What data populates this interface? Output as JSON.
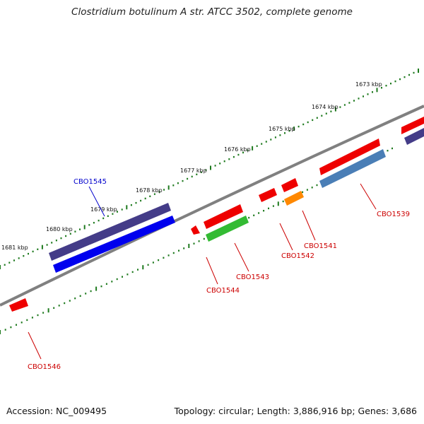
{
  "title": "Clostridium botulinum A str. ATCC 3502, complete genome",
  "footer": {
    "accession": "Accession: NC_009495",
    "topology": "Topology: circular; Length: 3,886,916 bp; Genes: 3,686"
  },
  "colors": {
    "backbone": "#808080",
    "tick": "#1e7a1e",
    "label_red": "#cc0000",
    "label_blue": "#0000cc",
    "red": "#ee0000",
    "blue": "#0000ee",
    "slate": "#443c88",
    "green": "#33bb33",
    "steel": "#4a7eb6",
    "orange": "#ff8800"
  },
  "kbp_labels": [
    "1673 kbp",
    "1674 kbp",
    "1675 kbp",
    "1676 kbp",
    "1677 kbp",
    "1678 kbp",
    "1679 kbp",
    "1680 kbp",
    "1681 kbp"
  ],
  "gene_labels": {
    "cbo1539": "CBO1539",
    "cbo1541": "CBO1541",
    "cbo1542": "CBO1542",
    "cbo1543": "CBO1543",
    "cbo1544": "CBO1544",
    "cbo1545": "CBO1545",
    "cbo1546": "CBO1546"
  }
}
